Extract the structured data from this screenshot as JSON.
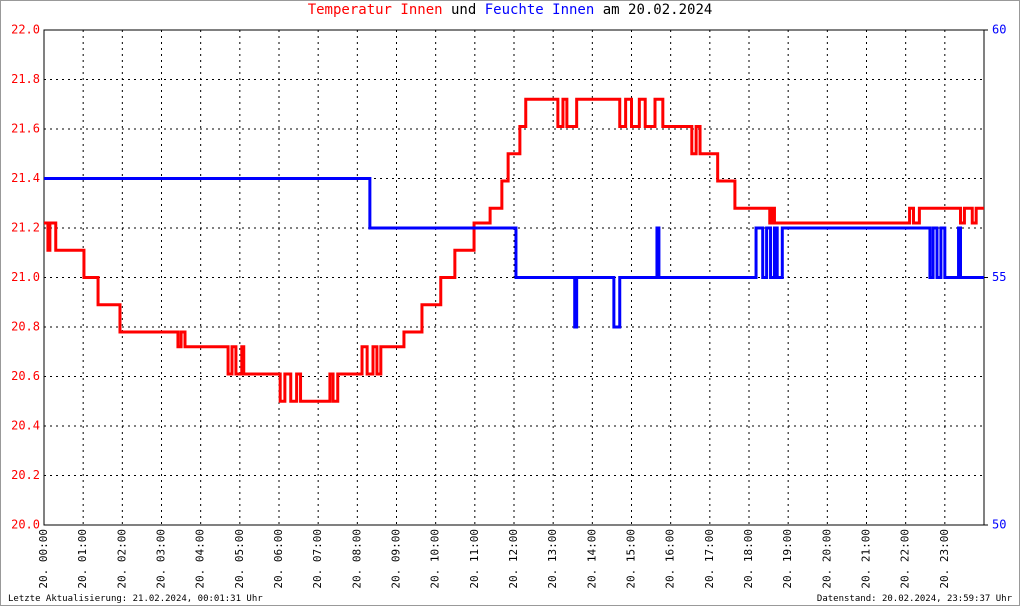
{
  "chart_data": {
    "type": "line",
    "title": {
      "connector": "und",
      "date": "am 20.02.2024"
    },
    "footer_left": "Letzte Aktualisierung: 21.02.2024, 00:01:31 Uhr",
    "footer_right": "Datenstand: 20.02.2024, 23:59:37 Uhr",
    "grid": true,
    "xlim": [
      0,
      24
    ],
    "xticks": [
      {
        "value": 0,
        "label": "20. 00:00"
      },
      {
        "value": 1,
        "label": "20. 01:00"
      },
      {
        "value": 2,
        "label": "20. 02:00"
      },
      {
        "value": 3,
        "label": "20. 03:00"
      },
      {
        "value": 4,
        "label": "20. 04:00"
      },
      {
        "value": 5,
        "label": "20. 05:00"
      },
      {
        "value": 6,
        "label": "20. 06:00"
      },
      {
        "value": 7,
        "label": "20. 07:00"
      },
      {
        "value": 8,
        "label": "20. 08:00"
      },
      {
        "value": 9,
        "label": "20. 09:00"
      },
      {
        "value": 10,
        "label": "20. 10:00"
      },
      {
        "value": 11,
        "label": "20. 11:00"
      },
      {
        "value": 12,
        "label": "20. 12:00"
      },
      {
        "value": 13,
        "label": "20. 13:00"
      },
      {
        "value": 14,
        "label": "20. 14:00"
      },
      {
        "value": 15,
        "label": "20. 15:00"
      },
      {
        "value": 16,
        "label": "20. 16:00"
      },
      {
        "value": 17,
        "label": "20. 17:00"
      },
      {
        "value": 18,
        "label": "20. 18:00"
      },
      {
        "value": 19,
        "label": "20. 19:00"
      },
      {
        "value": 20,
        "label": "20. 20:00"
      },
      {
        "value": 21,
        "label": "20. 21:00"
      },
      {
        "value": 22,
        "label": "20. 22:00"
      },
      {
        "value": 23,
        "label": "20. 23:00"
      }
    ],
    "ylim": [
      20,
      22
    ],
    "yticks": [
      {
        "value": 20,
        "label": "20.0"
      },
      {
        "value": 20.2,
        "label": "20.2"
      },
      {
        "value": 20.4,
        "label": "20.4"
      },
      {
        "value": 20.6,
        "label": "20.6"
      },
      {
        "value": 20.8,
        "label": "20.8"
      },
      {
        "value": 21,
        "label": "21.0"
      },
      {
        "value": 21.2,
        "label": "21.2"
      },
      {
        "value": 21.4,
        "label": "21.4"
      },
      {
        "value": 21.6,
        "label": "21.6"
      },
      {
        "value": 21.8,
        "label": "21.8"
      },
      {
        "value": 22,
        "label": "22.0"
      }
    ],
    "y2lim": [
      50,
      60
    ],
    "y2ticks": [
      50,
      55,
      60
    ],
    "series": [
      {
        "name": "Temperatur Innen",
        "color": "#ff0000",
        "x": [
          0,
          0.1,
          0.1,
          0.15,
          0.15,
          0.3,
          0.3,
          1.02,
          1.02,
          1.38,
          1.38,
          1.94,
          1.94,
          3.42,
          3.42,
          3.5,
          3.5,
          3.6,
          3.6,
          4.7,
          4.7,
          4.8,
          4.8,
          4.9,
          4.9,
          5.05,
          5.05,
          5.1,
          5.1,
          6.03,
          6.03,
          6.15,
          6.15,
          6.3,
          6.3,
          6.45,
          6.45,
          6.55,
          6.55,
          7.3,
          7.3,
          7.38,
          7.38,
          7.5,
          7.5,
          8.12,
          8.12,
          8.25,
          8.25,
          8.4,
          8.4,
          8.5,
          8.5,
          8.6,
          8.6,
          9.19,
          9.19,
          9.65,
          9.65,
          10.13,
          10.13,
          10.49,
          10.49,
          10.98,
          10.98,
          11.39,
          11.39,
          11.69,
          11.69,
          11.85,
          11.85,
          12.15,
          12.15,
          12.3,
          12.3,
          13.12,
          13.12,
          13.25,
          13.25,
          13.35,
          13.35,
          13.6,
          13.6,
          14.7,
          14.7,
          14.85,
          14.85,
          15,
          15,
          15.2,
          15.2,
          15.35,
          15.35,
          15.6,
          15.6,
          15.8,
          15.8,
          16.54,
          16.54,
          16.65,
          16.65,
          16.75,
          16.75,
          17.2,
          17.2,
          17.64,
          17.64,
          18.53,
          18.53,
          18.6,
          18.6,
          18.65,
          18.65,
          22.1,
          22.1,
          22.2,
          22.2,
          22.35,
          22.35,
          23.4,
          23.4,
          23.5,
          23.5,
          23.7,
          23.7,
          23.8,
          23.8,
          24
        ],
        "values": [
          21.22,
          21.22,
          21.11,
          21.11,
          21.22,
          21.22,
          21.11,
          21.11,
          21.0,
          21.0,
          20.89,
          20.89,
          20.78,
          20.78,
          20.72,
          20.72,
          20.78,
          20.78,
          20.72,
          20.72,
          20.61,
          20.61,
          20.72,
          20.72,
          20.61,
          20.61,
          20.72,
          20.72,
          20.61,
          20.61,
          20.5,
          20.5,
          20.61,
          20.61,
          20.5,
          20.5,
          20.61,
          20.61,
          20.5,
          20.5,
          20.61,
          20.61,
          20.5,
          20.5,
          20.61,
          20.61,
          20.72,
          20.72,
          20.61,
          20.61,
          20.72,
          20.72,
          20.61,
          20.61,
          20.72,
          20.72,
          20.78,
          20.78,
          20.89,
          20.89,
          21.0,
          21.0,
          21.11,
          21.11,
          21.22,
          21.22,
          21.28,
          21.28,
          21.39,
          21.39,
          21.5,
          21.5,
          21.61,
          21.61,
          21.72,
          21.72,
          21.61,
          21.61,
          21.72,
          21.72,
          21.61,
          21.61,
          21.72,
          21.72,
          21.61,
          21.61,
          21.72,
          21.72,
          21.61,
          21.61,
          21.72,
          21.72,
          21.61,
          21.61,
          21.72,
          21.72,
          21.61,
          21.61,
          21.5,
          21.5,
          21.61,
          21.61,
          21.5,
          21.5,
          21.39,
          21.39,
          21.28,
          21.28,
          21.22,
          21.22,
          21.28,
          21.28,
          21.22,
          21.22,
          21.28,
          21.28,
          21.22,
          21.22,
          21.28,
          21.28,
          21.22,
          21.22,
          21.28,
          21.28,
          21.22,
          21.22,
          21.28,
          21.28
        ]
      },
      {
        "name": "Feuchte Innen",
        "color": "#0000ff",
        "axis": "y2",
        "x": [
          0,
          8.32,
          8.32,
          12.05,
          12.05,
          13.55,
          13.55,
          13.6,
          13.6,
          14.55,
          14.55,
          14.7,
          14.7,
          15.65,
          15.65,
          15.7,
          15.7,
          18.18,
          18.18,
          18.35,
          18.35,
          18.45,
          18.45,
          18.55,
          18.55,
          18.65,
          18.65,
          18.72,
          18.72,
          18.85,
          18.85,
          22.62,
          22.62,
          22.7,
          22.7,
          22.8,
          22.8,
          22.9,
          22.9,
          23,
          23,
          23.35,
          23.35,
          23.4,
          23.4,
          24
        ],
        "values": [
          57,
          57,
          56,
          56,
          55,
          55,
          54,
          54,
          55,
          55,
          54,
          54,
          55,
          55,
          56,
          56,
          55,
          55,
          56,
          56,
          55,
          55,
          56,
          56,
          55,
          55,
          56,
          56,
          55,
          55,
          56,
          56,
          55,
          55,
          56,
          56,
          55,
          55,
          56,
          56,
          55,
          55,
          56,
          56,
          55,
          55
        ]
      }
    ]
  }
}
